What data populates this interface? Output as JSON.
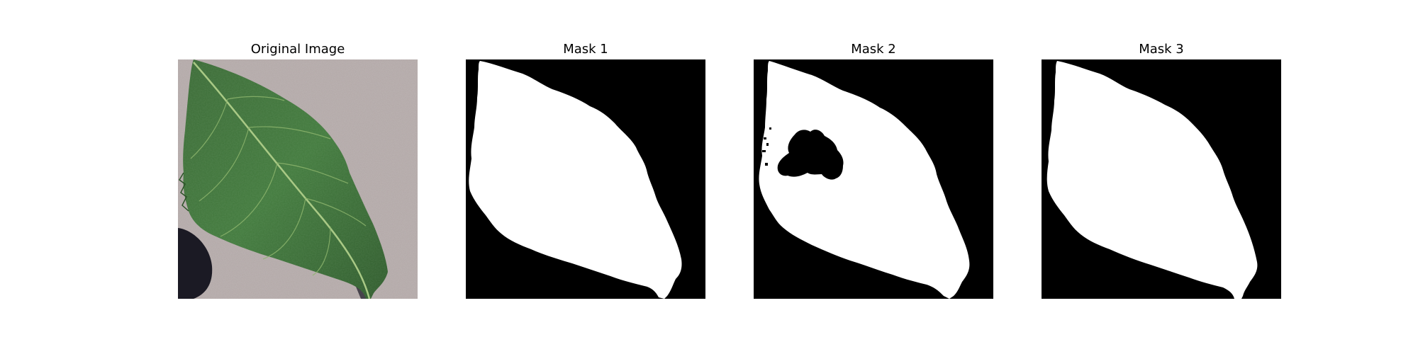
{
  "figure": {
    "panels": [
      {
        "title": "Original Image"
      },
      {
        "title": "Mask 1"
      },
      {
        "title": "Mask 2"
      },
      {
        "title": "Mask 3"
      }
    ]
  },
  "colors": {
    "background": "#ffffff",
    "mask_foreground": "#ffffff",
    "mask_background": "#000000",
    "leaf_green": "#3f6f3a",
    "leaf_dark": "#2c5228",
    "vein": "#9fc27a",
    "surface": "#b2a7a6",
    "shadow": "#1b1a24"
  }
}
